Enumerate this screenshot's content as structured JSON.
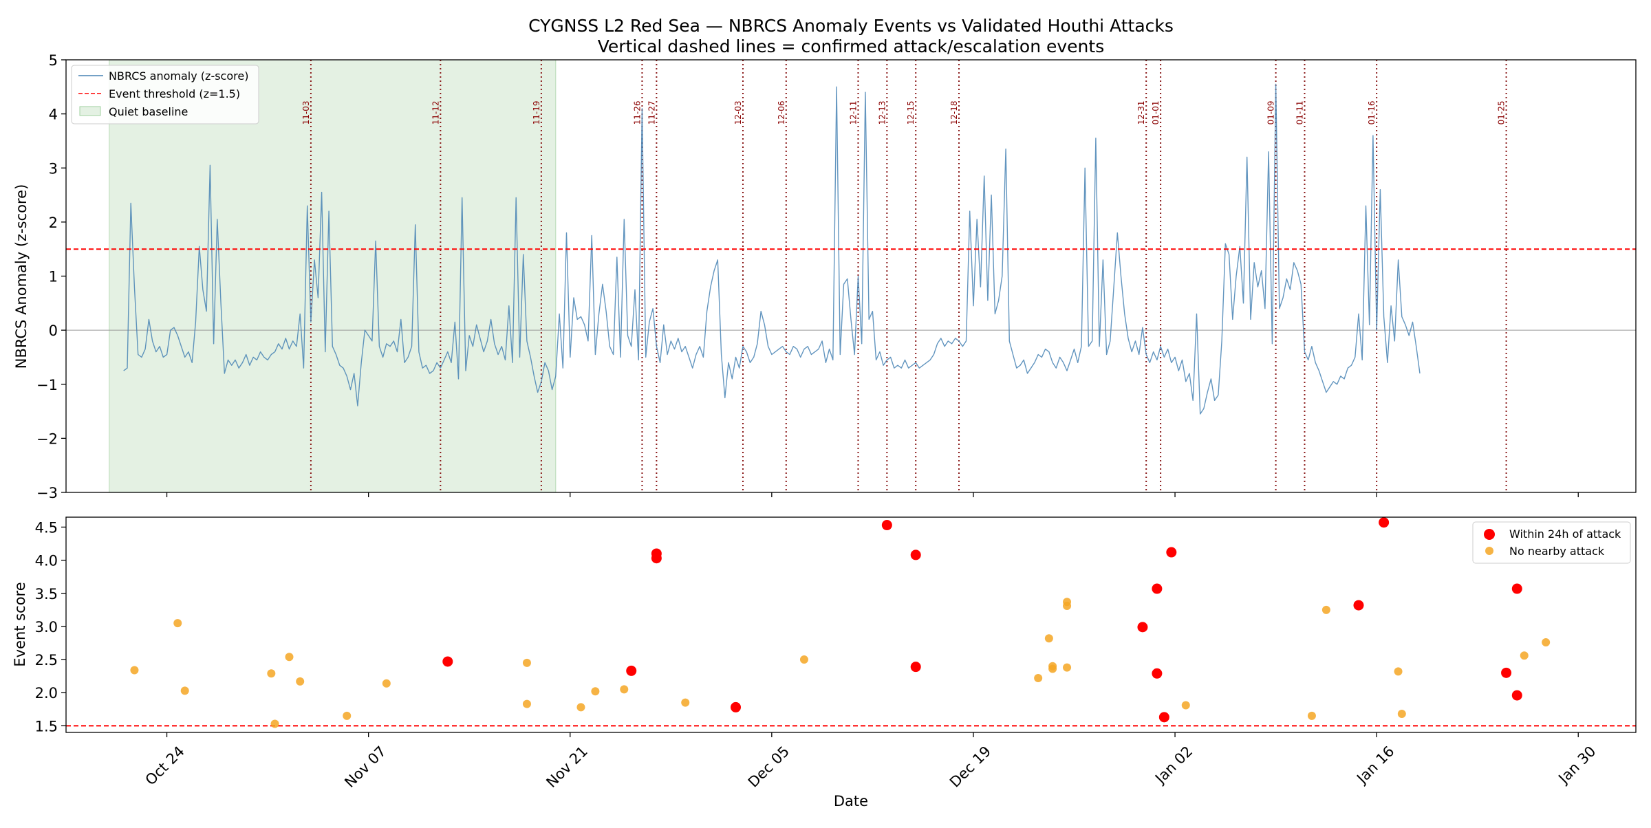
{
  "figure": {
    "title_line1": "CYGNSS L2 Red Sea — NBRCS Anomaly Events vs Validated Houthi Attacks",
    "title_line2": "Vertical dashed lines = confirmed attack/escalation events"
  },
  "chart_data": [
    {
      "type": "line",
      "ylabel": "NBRCS Anomaly (z-score)",
      "ylim": [
        -3,
        5
      ],
      "xlim": [
        "2023-10-17",
        "2024-02-03"
      ],
      "yticks": [
        -3,
        -2,
        -1,
        0,
        1,
        2,
        3,
        4,
        5
      ],
      "ytick_labels": [
        "−3",
        "−2",
        "−1",
        "0",
        "1",
        "2",
        "3",
        "4",
        "5"
      ],
      "threshold": 1.5,
      "quiet_baseline": [
        "2023-10-20",
        "2023-11-20"
      ],
      "event_lines": [
        {
          "date": "2023-11-03",
          "label": "11-03"
        },
        {
          "date": "2023-11-12",
          "label": "11-12"
        },
        {
          "date": "2023-11-19",
          "label": "11-19"
        },
        {
          "date": "2023-11-26",
          "label": "11-26"
        },
        {
          "date": "2023-11-27",
          "label": "11-27"
        },
        {
          "date": "2023-12-03",
          "label": "12-03"
        },
        {
          "date": "2023-12-06",
          "label": "12-06"
        },
        {
          "date": "2023-12-11",
          "label": "12-11"
        },
        {
          "date": "2023-12-13",
          "label": "12-13"
        },
        {
          "date": "2023-12-15",
          "label": "12-15"
        },
        {
          "date": "2023-12-18",
          "label": "12-18"
        },
        {
          "date": "2023-12-31",
          "label": "12-31"
        },
        {
          "date": "2024-01-01",
          "label": "01-01"
        },
        {
          "date": "2024-01-09",
          "label": "01-09"
        },
        {
          "date": "2024-01-11",
          "label": "01-11"
        },
        {
          "date": "2024-01-16",
          "label": "01-16"
        },
        {
          "date": "2024-01-25",
          "label": "01-25"
        }
      ],
      "legend": [
        "NBRCS anomaly (z-score)",
        "Event threshold (z=1.5)",
        "Quiet baseline"
      ],
      "legend_position": "top-left",
      "series": [
        {
          "name": "NBRCS anomaly (z-score)",
          "color": "#4682b4",
          "start": "2023-10-21T00:00",
          "step_hours": 6,
          "values": [
            -0.75,
            -0.7,
            2.35,
            0.8,
            -0.45,
            -0.5,
            -0.35,
            0.2,
            -0.2,
            -0.4,
            -0.3,
            -0.5,
            -0.45,
            0,
            0.05,
            -0.1,
            -0.3,
            -0.5,
            -0.4,
            -0.6,
            0.15,
            1.55,
            0.75,
            0.35,
            3.05,
            -0.25,
            2.05,
            0.5,
            -0.8,
            -0.55,
            -0.65,
            -0.55,
            -0.7,
            -0.6,
            -0.45,
            -0.65,
            -0.5,
            -0.55,
            -0.4,
            -0.5,
            -0.55,
            -0.45,
            -0.4,
            -0.25,
            -0.35,
            -0.15,
            -0.35,
            -0.2,
            -0.3,
            0.3,
            -0.7,
            2.3,
            0.15,
            1.3,
            0.6,
            2.55,
            -0.4,
            2.2,
            -0.3,
            -0.45,
            -0.65,
            -0.7,
            -0.85,
            -1.1,
            -0.8,
            -1.4,
            -0.6,
            0,
            -0.1,
            -0.2,
            1.65,
            -0.3,
            -0.5,
            -0.25,
            -0.3,
            -0.2,
            -0.4,
            0.2,
            -0.6,
            -0.5,
            -0.3,
            1.95,
            -0.4,
            -0.7,
            -0.65,
            -0.8,
            -0.75,
            -0.6,
            -0.7,
            -0.55,
            -0.4,
            -0.6,
            0.15,
            -0.9,
            2.45,
            -0.75,
            -0.1,
            -0.3,
            0.1,
            -0.15,
            -0.4,
            -0.2,
            0.2,
            -0.25,
            -0.45,
            -0.3,
            -0.55,
            0.45,
            -0.6,
            2.45,
            -0.5,
            1.4,
            -0.2,
            -0.5,
            -0.85,
            -1.15,
            -0.95,
            -0.6,
            -0.75,
            -1.1,
            -0.85,
            0.3,
            -0.7,
            1.8,
            -0.5,
            0.6,
            0.2,
            0.25,
            0.1,
            -0.2,
            1.75,
            -0.45,
            0.3,
            0.85,
            0.35,
            -0.3,
            -0.45,
            1.35,
            -0.5,
            2.05,
            -0.1,
            -0.3,
            0.75,
            -0.55,
            4.1,
            -0.5,
            0.15,
            0.4,
            -0.3,
            -0.6,
            0.1,
            -0.45,
            -0.2,
            -0.35,
            -0.15,
            -0.4,
            -0.3,
            -0.5,
            -0.7,
            -0.45,
            -0.3,
            -0.5,
            0.35,
            0.8,
            1.1,
            1.3,
            -0.45,
            -1.25,
            -0.6,
            -0.9,
            -0.5,
            -0.7,
            -0.3,
            -0.4,
            -0.6,
            -0.5,
            -0.25,
            0.35,
            0.1,
            -0.3,
            -0.45,
            -0.4,
            -0.35,
            -0.3,
            -0.4,
            -0.45,
            -0.3,
            -0.35,
            -0.5,
            -0.35,
            -0.3,
            -0.45,
            -0.4,
            -0.35,
            -0.2,
            -0.6,
            -0.35,
            -0.55,
            4.5,
            -0.45,
            0.85,
            0.95,
            0.2,
            -0.45,
            1.0,
            -0.25,
            4.4,
            0.2,
            0.35,
            -0.55,
            -0.4,
            -0.65,
            -0.55,
            -0.5,
            -0.7,
            -0.65,
            -0.7,
            -0.55,
            -0.7,
            -0.65,
            -0.6,
            -0.7,
            -0.65,
            -0.6,
            -0.55,
            -0.45,
            -0.25,
            -0.15,
            -0.3,
            -0.2,
            -0.25,
            -0.15,
            -0.2,
            -0.3,
            -0.2,
            2.2,
            0.45,
            2.05,
            0.8,
            2.85,
            0.55,
            2.5,
            0.3,
            0.55,
            1.0,
            3.35,
            -0.2,
            -0.45,
            -0.7,
            -0.65,
            -0.55,
            -0.8,
            -0.7,
            -0.6,
            -0.45,
            -0.5,
            -0.35,
            -0.4,
            -0.6,
            -0.7,
            -0.5,
            -0.6,
            -0.75,
            -0.55,
            -0.35,
            -0.6,
            -0.3,
            3.0,
            -0.3,
            -0.2,
            3.55,
            -0.3,
            1.3,
            -0.45,
            -0.2,
            0.8,
            1.8,
            1.0,
            0.3,
            -0.15,
            -0.4,
            -0.2,
            -0.45,
            0.05,
            -0.45,
            -0.6,
            -0.4,
            -0.55,
            -0.3,
            -0.5,
            -0.35,
            -0.6,
            -0.5,
            -0.75,
            -0.55,
            -0.95,
            -0.8,
            -1.3,
            0.3,
            -1.55,
            -1.45,
            -1.15,
            -0.9,
            -1.3,
            -1.2,
            -0.2,
            1.6,
            1.4,
            0.2,
            1.0,
            1.55,
            0.5,
            3.2,
            0.2,
            1.25,
            0.8,
            1.1,
            0.4,
            3.3,
            -0.25,
            4.55,
            0.4,
            0.6,
            0.95,
            0.75,
            1.25,
            1.1,
            0.85,
            -0.4,
            -0.55,
            -0.3,
            -0.6,
            -0.75,
            -0.95,
            -1.15,
            -1.05,
            -0.95,
            -1.0,
            -0.85,
            -0.9,
            -0.7,
            -0.65,
            -0.5,
            0.3,
            -0.55,
            2.3,
            0.1,
            3.6,
            0,
            2.6,
            0.25,
            -0.6,
            0.45,
            -0.2,
            1.3,
            0.25,
            0.1,
            -0.1,
            0.15,
            -0.3,
            -0.8
          ]
        }
      ]
    },
    {
      "type": "scatter",
      "xlabel": "Date",
      "ylabel": "Event score",
      "ylim": [
        1.4,
        4.65
      ],
      "yticks": [
        1.5,
        2.0,
        2.5,
        3.0,
        3.5,
        4.0,
        4.5
      ],
      "ytick_labels": [
        "1.5",
        "2.0",
        "2.5",
        "3.0",
        "3.5",
        "4.0",
        "4.5"
      ],
      "xticks": [
        "2023-10-24",
        "2023-11-07",
        "2023-11-21",
        "2023-12-05",
        "2023-12-19",
        "2024-01-02",
        "2024-01-16",
        "2024-01-30"
      ],
      "xtick_labels": [
        "Oct 24",
        "Nov 07",
        "Nov 21",
        "Dec 05",
        "Dec 19",
        "Jan 02",
        "Jan 16",
        "Jan 30"
      ],
      "threshold": 1.5,
      "legend_position": "top-right",
      "series": [
        {
          "name": "Within 24h of attack",
          "color": "#ff0000",
          "points": [
            {
              "x": "2023-11-12T12:00",
              "y": 2.47
            },
            {
              "x": "2023-11-25T06:00",
              "y": 2.33
            },
            {
              "x": "2023-11-27T00:00",
              "y": 4.1
            },
            {
              "x": "2023-11-27T00:00",
              "y": 4.03
            },
            {
              "x": "2023-12-02T12:00",
              "y": 1.78
            },
            {
              "x": "2023-12-13T00:00",
              "y": 4.53
            },
            {
              "x": "2023-12-15T00:00",
              "y": 4.08
            },
            {
              "x": "2023-12-15T00:00",
              "y": 2.39
            },
            {
              "x": "2023-12-30T18:00",
              "y": 2.99
            },
            {
              "x": "2023-12-31T18:00",
              "y": 3.57
            },
            {
              "x": "2023-12-31T18:00",
              "y": 2.29
            },
            {
              "x": "2024-01-01T06:00",
              "y": 1.63
            },
            {
              "x": "2024-01-01T18:00",
              "y": 4.12
            },
            {
              "x": "2024-01-14T18:00",
              "y": 3.32
            },
            {
              "x": "2024-01-16T12:00",
              "y": 4.57
            },
            {
              "x": "2024-01-25T00:00",
              "y": 2.3
            },
            {
              "x": "2024-01-25T18:00",
              "y": 3.57
            },
            {
              "x": "2024-01-25T18:00",
              "y": 1.96
            }
          ]
        },
        {
          "name": "No nearby attack",
          "color": "#f5a623",
          "points": [
            {
              "x": "2023-10-21T18:00",
              "y": 2.34
            },
            {
              "x": "2023-10-24T18:00",
              "y": 3.05
            },
            {
              "x": "2023-10-25T06:00",
              "y": 2.03
            },
            {
              "x": "2023-10-31T06:00",
              "y": 2.29
            },
            {
              "x": "2023-10-31T12:00",
              "y": 1.53
            },
            {
              "x": "2023-11-01T12:00",
              "y": 2.54
            },
            {
              "x": "2023-11-02T06:00",
              "y": 2.17
            },
            {
              "x": "2023-11-05T12:00",
              "y": 1.65
            },
            {
              "x": "2023-11-08T06:00",
              "y": 2.14
            },
            {
              "x": "2023-11-18T00:00",
              "y": 2.45
            },
            {
              "x": "2023-11-18T00:00",
              "y": 1.83
            },
            {
              "x": "2023-11-21T18:00",
              "y": 1.78
            },
            {
              "x": "2023-11-22T18:00",
              "y": 2.02
            },
            {
              "x": "2023-11-24T18:00",
              "y": 2.05
            },
            {
              "x": "2023-11-29T00:00",
              "y": 1.85
            },
            {
              "x": "2023-12-07T06:00",
              "y": 2.5
            },
            {
              "x": "2023-12-23T12:00",
              "y": 2.22
            },
            {
              "x": "2023-12-24T06:00",
              "y": 2.82
            },
            {
              "x": "2023-12-24T12:00",
              "y": 2.4
            },
            {
              "x": "2023-12-24T12:00",
              "y": 2.36
            },
            {
              "x": "2023-12-25T12:00",
              "y": 3.37
            },
            {
              "x": "2023-12-25T12:00",
              "y": 3.31
            },
            {
              "x": "2023-12-25T12:00",
              "y": 2.38
            },
            {
              "x": "2024-01-02T18:00",
              "y": 1.81
            },
            {
              "x": "2024-01-11T12:00",
              "y": 1.65
            },
            {
              "x": "2024-01-12T12:00",
              "y": 3.25
            },
            {
              "x": "2024-01-17T12:00",
              "y": 2.32
            },
            {
              "x": "2024-01-17T18:00",
              "y": 1.68
            },
            {
              "x": "2024-01-26T06:00",
              "y": 2.56
            },
            {
              "x": "2024-01-27T18:00",
              "y": 2.76
            }
          ]
        }
      ]
    }
  ]
}
